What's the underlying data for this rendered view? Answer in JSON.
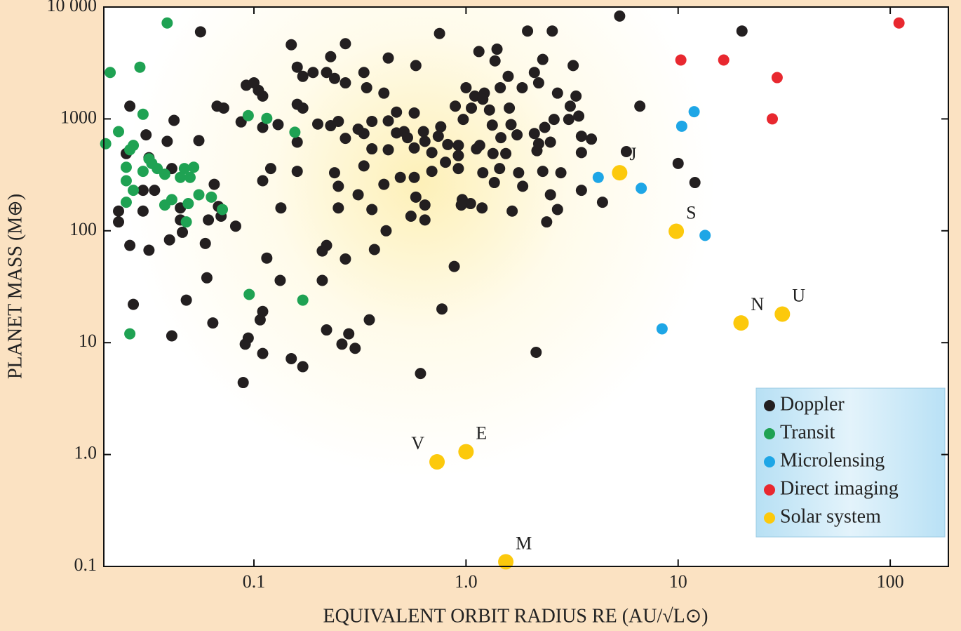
{
  "chart_data": {
    "type": "scatter",
    "xlabel": "EQUIVALENT ORBIT RADIUS RE (AU/√L⊙)",
    "ylabel": "PLANET MASS (M⊕)",
    "xscale": "log",
    "yscale": "log",
    "xlim": [
      0.0196,
      188
    ],
    "ylim": [
      0.1,
      10000
    ],
    "xticks": [
      0.1,
      {
        "value": 1,
        "label": "1.0"
      },
      10,
      100
    ],
    "yticks": [
      0.1,
      {
        "value": 1,
        "label": "1.0"
      },
      10,
      100,
      1000,
      {
        "value": 10000,
        "label": "10 000"
      }
    ],
    "legend": "lower right",
    "series": [
      {
        "name": "Doppler",
        "color": "#231f20",
        "x": [
          0.056,
          5.3,
          20,
          0.75,
          1.95,
          2.55,
          0.15,
          0.23,
          0.27,
          1.15,
          1.4,
          0.43,
          0.16,
          0.19,
          0.33,
          0.58,
          1.37,
          2.3,
          3.2,
          2.1,
          1.58,
          0.17,
          0.22,
          0.24,
          0.1,
          0.092,
          0.105,
          0.11,
          0.27,
          0.34,
          0.41,
          1.0,
          1.1,
          1.22,
          1.45,
          1.2,
          1.84,
          2.2,
          2.7,
          3.3,
          0.067,
          0.072,
          0.026,
          0.042,
          0.16,
          0.17,
          0.47,
          0.57,
          0.89,
          1.06,
          1.29,
          1.6,
          3.1,
          6.6,
          0.087,
          0.11,
          0.13,
          0.2,
          0.23,
          0.25,
          0.31,
          0.36,
          0.43,
          0.51,
          0.63,
          0.76,
          0.97,
          1.33,
          1.63,
          2.1,
          2.35,
          2.6,
          3.05,
          3.4,
          0.031,
          0.039,
          0.055,
          0.16,
          0.27,
          0.33,
          0.47,
          0.53,
          0.64,
          0.74,
          0.82,
          0.92,
          1.16,
          1.46,
          1.74,
          2.2,
          2.5,
          3.5,
          3.9,
          0.025,
          0.032,
          0.041,
          0.36,
          0.43,
          0.57,
          0.69,
          0.8,
          0.92,
          1.12,
          1.34,
          1.54,
          2.16,
          3.5,
          5.7,
          0.12,
          0.16,
          0.24,
          0.33,
          0.41,
          0.49,
          0.57,
          0.69,
          0.92,
          1.2,
          1.44,
          1.77,
          2.3,
          2.8,
          10,
          0.03,
          0.034,
          0.065,
          0.11,
          0.25,
          0.31,
          0.58,
          0.64,
          0.96,
          1.05,
          1.19,
          1.36,
          1.85,
          2.5,
          3.5,
          12,
          0.023,
          0.03,
          0.045,
          0.068,
          0.134,
          0.25,
          0.36,
          0.55,
          0.64,
          0.95,
          1.65,
          2.7,
          4.4,
          0.023,
          0.045,
          0.061,
          0.07,
          0.082,
          2.4,
          0.42,
          0.032,
          0.059,
          0.04,
          0.046,
          0.22,
          0.21,
          0.37,
          0.026,
          0.115,
          0.27,
          0.88,
          0.06,
          0.133,
          0.21,
          0.027,
          0.048,
          0.77,
          0.11,
          0.107,
          0.35,
          0.064,
          0.22,
          0.28,
          0.041,
          0.094,
          0.091,
          0.26,
          0.3,
          0.11,
          2.14,
          0.15,
          0.17,
          0.61,
          0.089
        ],
        "values": [
          6000,
          8300,
          6100,
          5800,
          6100,
          6100,
          4600,
          3600,
          4700,
          4000,
          4200,
          3500,
          2900,
          2600,
          2600,
          3000,
          3300,
          3400,
          3000,
          2600,
          2400,
          2400,
          2600,
          2300,
          2100,
          2000,
          1800,
          1600,
          2100,
          1900,
          1700,
          1900,
          1600,
          1700,
          1900,
          1500,
          1900,
          2100,
          1700,
          1600,
          1300,
          1250,
          1300,
          970,
          1350,
          1250,
          1150,
          1130,
          1300,
          1250,
          1200,
          1250,
          1300,
          1300,
          940,
          840,
          890,
          900,
          870,
          950,
          810,
          950,
          960,
          770,
          770,
          850,
          990,
          880,
          890,
          740,
          840,
          990,
          990,
          1060,
          720,
          630,
          640,
          620,
          670,
          740,
          750,
          680,
          630,
          700,
          590,
          580,
          580,
          680,
          720,
          600,
          620,
          700,
          660,
          490,
          450,
          360,
          540,
          530,
          550,
          500,
          410,
          470,
          540,
          490,
          490,
          520,
          500,
          510,
          360,
          340,
          330,
          380,
          260,
          300,
          300,
          340,
          360,
          330,
          360,
          330,
          340,
          330,
          400,
          230,
          230,
          260,
          280,
          250,
          210,
          200,
          170,
          190,
          175,
          160,
          270,
          250,
          210,
          230,
          270,
          150,
          150,
          160,
          165,
          160,
          160,
          155,
          135,
          125,
          170,
          150,
          155,
          180,
          120,
          125,
          125,
          135,
          110,
          120,
          100,
          67,
          77,
          83,
          97,
          74,
          66,
          68,
          74,
          57,
          56,
          48,
          38,
          36,
          36,
          22,
          24,
          20,
          19,
          16,
          16,
          15,
          13,
          12,
          11.5,
          11,
          9.7,
          9.7,
          8.9,
          8,
          8.2,
          7.2,
          6.1,
          5.3,
          4.4
        ]
      },
      {
        "name": "Transit",
        "color": "#1fa253",
        "x": [
          0.039,
          0.021,
          0.029,
          0.03,
          0.094,
          0.115,
          0.156,
          0.023,
          0.02,
          0.027,
          0.026,
          0.025,
          0.03,
          0.032,
          0.033,
          0.035,
          0.038,
          0.047,
          0.052,
          0.045,
          0.05,
          0.025,
          0.027,
          0.055,
          0.063,
          0.025,
          0.041,
          0.038,
          0.049,
          0.071,
          0.048,
          0.095,
          0.17,
          0.026
        ],
        "values": [
          7200,
          2600,
          2900,
          1100,
          1070,
          1010,
          760,
          770,
          600,
          580,
          530,
          370,
          340,
          440,
          400,
          360,
          320,
          360,
          370,
          300,
          300,
          280,
          230,
          210,
          200,
          180,
          190,
          170,
          175,
          155,
          120,
          27,
          24,
          12
        ]
      },
      {
        "name": "Microlensing",
        "color": "#1ea6e6",
        "x": [
          4.2,
          6.7,
          10.4,
          11.9,
          13.4,
          8.4
        ],
        "values": [
          300,
          240,
          860,
          1160,
          91,
          13.3
        ]
      },
      {
        "name": "Direct imaging",
        "color": "#e8282f",
        "x": [
          10.3,
          16.4,
          29.3,
          27.8,
          110
        ],
        "values": [
          3360,
          3360,
          2340,
          1000,
          7200
        ]
      },
      {
        "name": "Solar system",
        "color": "#fcc90c",
        "x": [
          0.73,
          1.0,
          1.54,
          5.3,
          9.8,
          19.8,
          31
        ],
        "values": [
          0.86,
          1.06,
          0.11,
          330,
          99,
          15,
          18
        ],
        "point_labels": [
          "V",
          "E",
          "M",
          "J",
          "S",
          "N",
          "U"
        ]
      }
    ]
  }
}
